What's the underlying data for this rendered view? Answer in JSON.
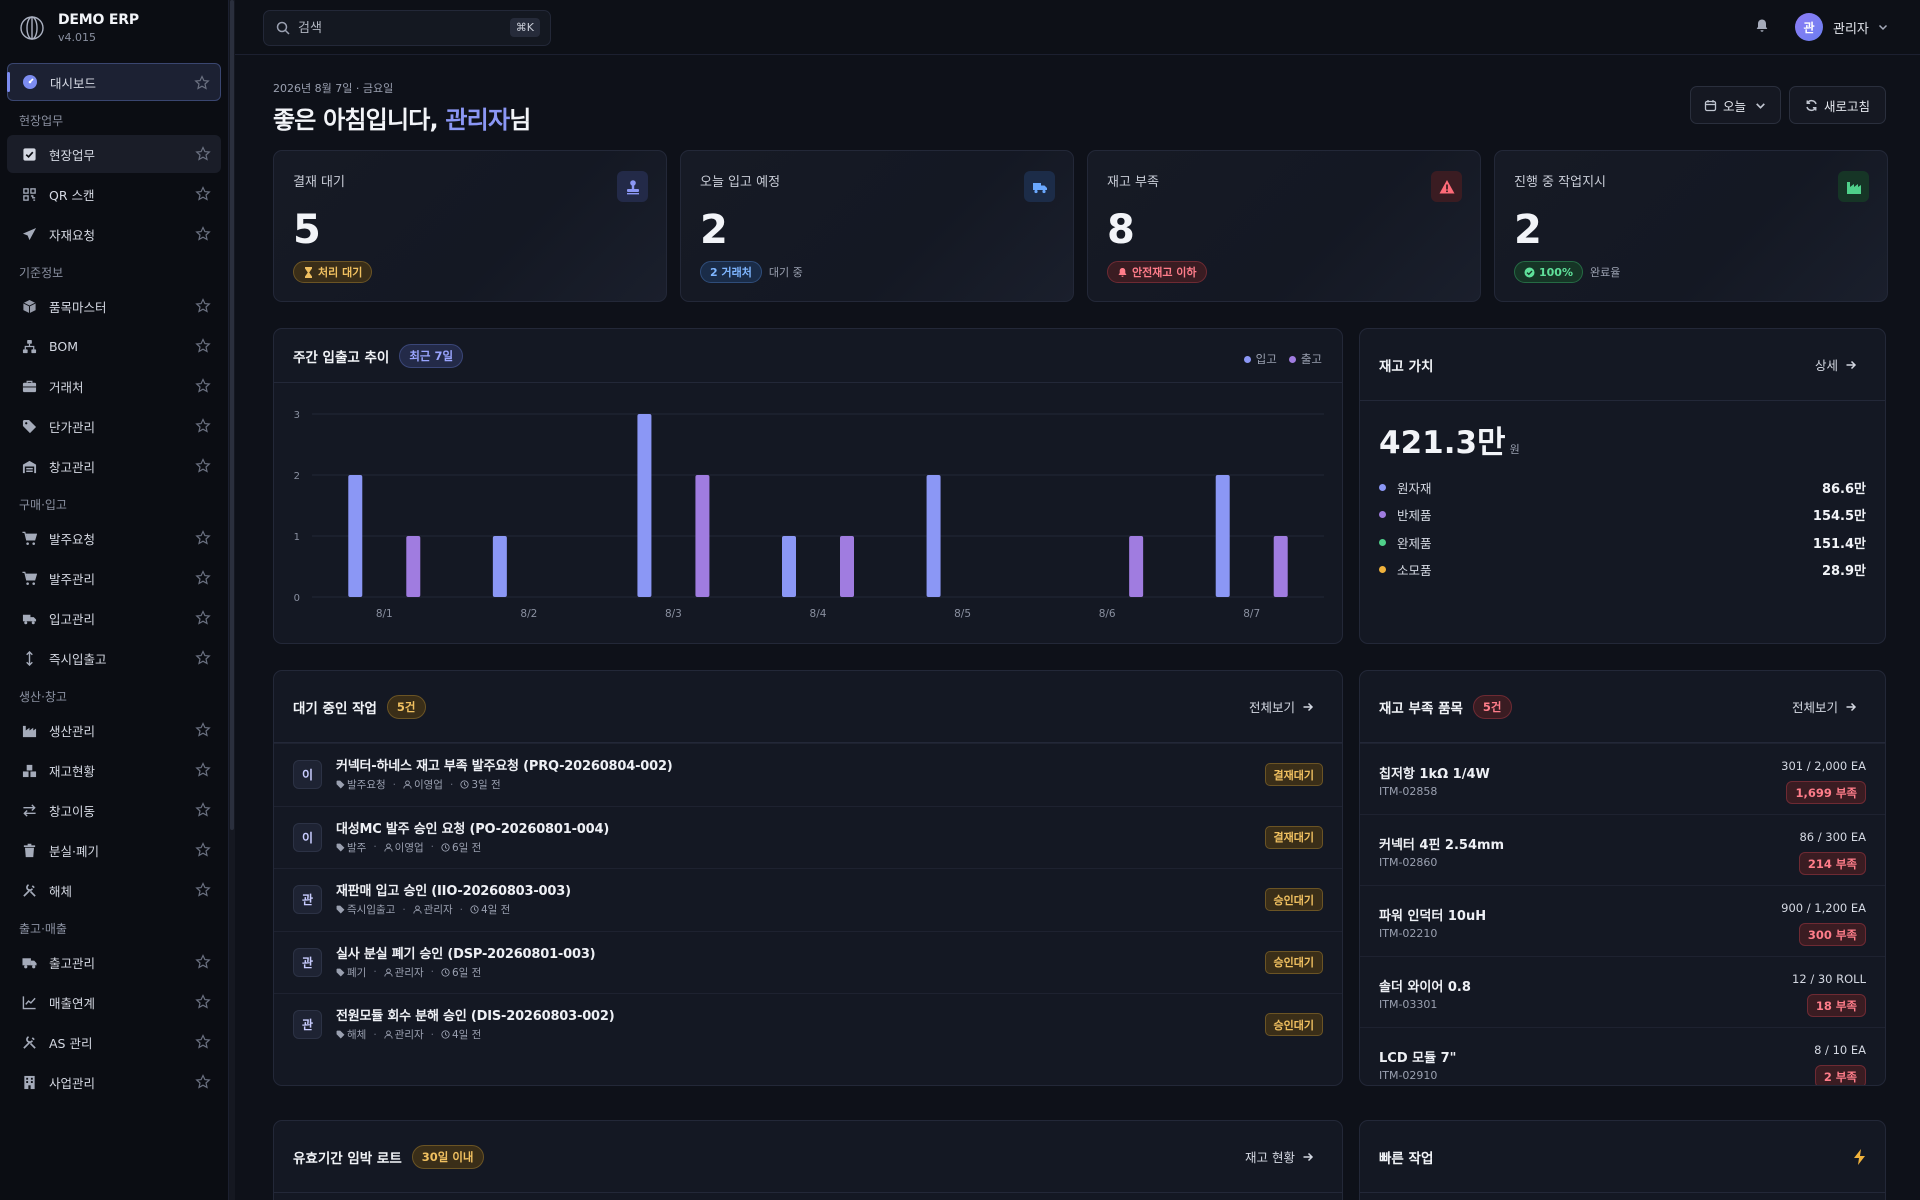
{
  "app": {
    "name": "DEMO ERP",
    "version": "v4.015"
  },
  "sidebar": {
    "dashboard": {
      "label": "대시보드"
    },
    "groups": [
      {
        "title": "현장업무",
        "items": [
          {
            "label": "현장업무",
            "icon": "checkbox-icon"
          },
          {
            "label": "QR 스캔",
            "icon": "qr-icon"
          },
          {
            "label": "자재요청",
            "icon": "send-icon"
          }
        ]
      },
      {
        "title": "기준정보",
        "items": [
          {
            "label": "품목마스터",
            "icon": "box-icon"
          },
          {
            "label": "BOM",
            "icon": "tree-icon"
          },
          {
            "label": "거래처",
            "icon": "briefcase-icon"
          },
          {
            "label": "단가관리",
            "icon": "tag-icon"
          },
          {
            "label": "창고관리",
            "icon": "warehouse-icon"
          }
        ]
      },
      {
        "title": "구매·입고",
        "items": [
          {
            "label": "발주요청",
            "icon": "cart-icon"
          },
          {
            "label": "발주관리",
            "icon": "cart-icon"
          },
          {
            "label": "입고관리",
            "icon": "truck-icon"
          },
          {
            "label": "즉시입출고",
            "icon": "updown-icon"
          }
        ]
      },
      {
        "title": "생산·창고",
        "items": [
          {
            "label": "생산관리",
            "icon": "factory-icon"
          },
          {
            "label": "재고현황",
            "icon": "stock-icon"
          },
          {
            "label": "창고이동",
            "icon": "swap-icon"
          },
          {
            "label": "분실·폐기",
            "icon": "trash-icon"
          },
          {
            "label": "해체",
            "icon": "tools-icon"
          }
        ]
      },
      {
        "title": "출고·매출",
        "items": [
          {
            "label": "출고관리",
            "icon": "delivery-icon"
          },
          {
            "label": "매출연계",
            "icon": "chart-line-icon"
          },
          {
            "label": "AS 관리",
            "icon": "wrench-icon"
          },
          {
            "label": "사업관리",
            "icon": "building-icon"
          }
        ]
      }
    ]
  },
  "topbar": {
    "search_placeholder": "검색",
    "shortcut": "⌘K",
    "user_initial": "관",
    "user_name": "관리자"
  },
  "header": {
    "date": "2026년 8월 7일 · 금요일",
    "greeting_pre": "좋은 아침입니다, ",
    "greeting_name": "관리자",
    "greeting_post": "님",
    "period_label": "오늘",
    "refresh_label": "새로고침"
  },
  "kpis": [
    {
      "title": "결재 대기",
      "value": "5",
      "pill": "처리 대기",
      "note": "",
      "color": "#f0b23c"
    },
    {
      "title": "오늘 입고 예정",
      "value": "2",
      "pill": "2 거래처",
      "note": "대기 중",
      "color": "#6aa8ff"
    },
    {
      "title": "재고 부족",
      "value": "8",
      "pill": "안전재고 이하",
      "note": "",
      "color": "#ff6b78"
    },
    {
      "title": "진행 중 작업지시",
      "value": "2",
      "pill": "100%",
      "note": "완료율",
      "color": "#4fd08a"
    }
  ],
  "weekly": {
    "title": "주간 입출고 추이",
    "badge": "최근 7일",
    "chart_data": {
      "type": "bar",
      "categories": [
        "8/1",
        "8/2",
        "8/3",
        "8/4",
        "8/5",
        "8/6",
        "8/7"
      ],
      "series": [
        {
          "name": "입고",
          "color": "#8b97f5",
          "values": [
            2,
            1,
            3,
            1,
            2,
            0,
            2
          ]
        },
        {
          "name": "출고",
          "color": "#a07ce0",
          "values": [
            1,
            0,
            2,
            1,
            0,
            1,
            1
          ]
        }
      ],
      "ylim": [
        0,
        3
      ],
      "yticks": [
        "0",
        "1",
        "2",
        "3"
      ],
      "legend": "top-right"
    }
  },
  "inventory": {
    "title": "재고 가치",
    "link": "상세",
    "total": "421.3만",
    "unit": "원",
    "rows": [
      {
        "label": "원자재",
        "value": "86.6만",
        "color": "#8b97f5"
      },
      {
        "label": "반제품",
        "value": "154.5만",
        "color": "#a07ce0"
      },
      {
        "label": "완제품",
        "value": "151.4만",
        "color": "#4fd08a"
      },
      {
        "label": "소모품",
        "value": "28.9만",
        "color": "#f0b23c"
      }
    ]
  },
  "tasks": {
    "title": "대기 중인 작업",
    "badge": "5건",
    "link": "전체보기",
    "items": [
      {
        "av": "이",
        "title": "커넥터-하네스 재고 부족 발주요청 (PRQ-20260804-002)",
        "type": "발주요청",
        "user": "이영업",
        "time": "3일 전",
        "status": "결재대기"
      },
      {
        "av": "이",
        "title": "대성MC 발주 승인 요청 (PO-20260801-004)",
        "type": "발주",
        "user": "이영업",
        "time": "6일 전",
        "status": "결재대기"
      },
      {
        "av": "관",
        "title": "재판매 입고 승인 (IIO-20260803-003)",
        "type": "즉시입출고",
        "user": "관리자",
        "time": "4일 전",
        "status": "승인대기"
      },
      {
        "av": "관",
        "title": "실사 분실 폐기 승인 (DSP-20260801-003)",
        "type": "폐기",
        "user": "관리자",
        "time": "6일 전",
        "status": "승인대기"
      },
      {
        "av": "관",
        "title": "전원모듈 회수 분해 승인 (DIS-20260803-002)",
        "type": "해체",
        "user": "관리자",
        "time": "4일 전",
        "status": "승인대기"
      }
    ]
  },
  "shortage": {
    "title": "재고 부족 품목",
    "badge": "5건",
    "link": "전체보기",
    "items": [
      {
        "name": "칩저항 1kΩ 1/4W",
        "code": "ITM-02858",
        "qty": "301 / 2,000 EA",
        "short": "1,699 부족"
      },
      {
        "name": "커넥터 4핀 2.54mm",
        "code": "ITM-02860",
        "qty": "86 / 300 EA",
        "short": "214 부족"
      },
      {
        "name": "파워 인덕터 10uH",
        "code": "ITM-02210",
        "qty": "900 / 1,200 EA",
        "short": "300 부족"
      },
      {
        "name": "솔더 와이어 0.8",
        "code": "ITM-03301",
        "qty": "12 / 30 ROLL",
        "short": "18 부족"
      },
      {
        "name": "LCD 모듈 7\"",
        "code": "ITM-02910",
        "qty": "8 / 10 EA",
        "short": "2 부족"
      }
    ]
  },
  "expiry": {
    "title": "유효기간 임박 로트",
    "badge": "30일 이내",
    "link": "재고 현황"
  },
  "quick": {
    "title": "빠른 작업"
  }
}
